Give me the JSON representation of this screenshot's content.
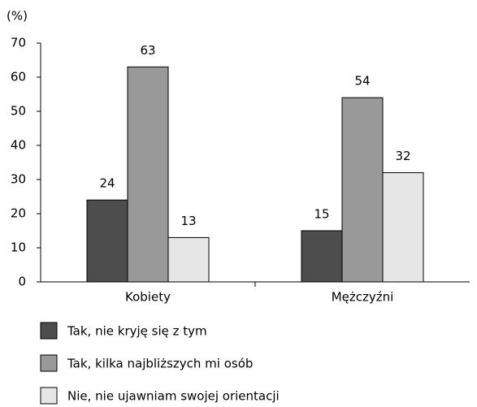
{
  "chart_data": {
    "type": "bar",
    "y_label": "(%)",
    "categories": [
      "Kobiety",
      "Mężczyźni"
    ],
    "series": [
      {
        "name": "Tak, nie kryję się z tym",
        "color": "#4d4d4d",
        "values": [
          24,
          15
        ]
      },
      {
        "name": "Tak, kilka najbliższych mi osób",
        "color": "#999999",
        "values": [
          63,
          54
        ]
      },
      {
        "name": "Nie, nie ujawniam swojej orientacji",
        "color": "#e6e6e6",
        "values": [
          13,
          32
        ]
      }
    ],
    "ylim": [
      0,
      70
    ],
    "yticks": [
      0,
      10,
      20,
      30,
      40,
      50,
      60,
      70
    ],
    "grid": false,
    "legend": "bottom"
  }
}
